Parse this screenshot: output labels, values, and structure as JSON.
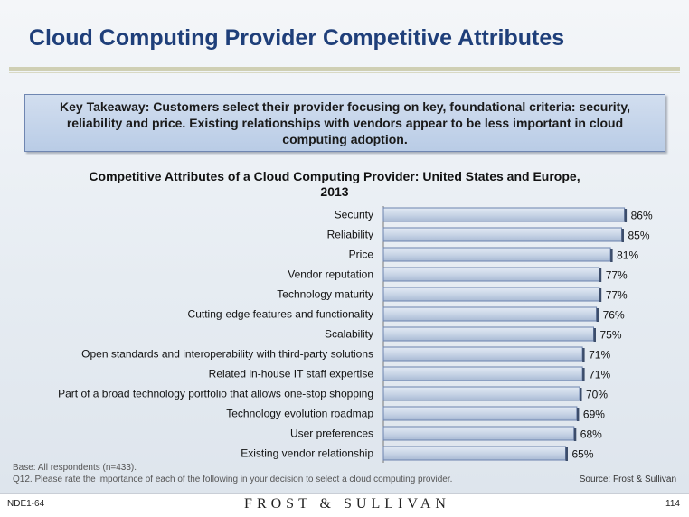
{
  "header": {
    "title": "Cloud Computing Provider Competitive Attributes"
  },
  "takeaway": {
    "text": "Key Takeaway: Customers select their provider focusing on key, foundational criteria: security, reliability and price. Existing relationships with vendors appear to be less important in cloud computing adoption."
  },
  "chart_data": {
    "type": "bar",
    "orientation": "horizontal",
    "title": "Competitive Attributes of a Cloud Computing Provider: United States and Europe, 2013",
    "categories": [
      "Security",
      "Reliability",
      "Price",
      "Vendor reputation",
      "Technology maturity",
      "Cutting-edge features and functionality",
      "Scalability",
      "Open standards and interoperability with third-party solutions",
      "Related in-house IT staff expertise",
      "Part of a broad technology portfolio that allows one-stop shopping",
      "Technology evolution roadmap",
      "User preferences",
      "Existing vendor relationship"
    ],
    "values": [
      86,
      85,
      81,
      77,
      77,
      76,
      75,
      71,
      71,
      70,
      69,
      68,
      65
    ],
    "value_labels": [
      "86%",
      "85%",
      "81%",
      "77%",
      "77%",
      "76%",
      "75%",
      "71%",
      "71%",
      "70%",
      "69%",
      "68%",
      "65%"
    ],
    "xlim": [
      0,
      100
    ],
    "grid": false,
    "legend": "none",
    "bar_color": "#c6d3e5",
    "bar_edge_color": "#6c83ae"
  },
  "footnotes": {
    "base": "Base: All respondents (n=433).",
    "question": "Q12. Please rate the importance of each of the following in your decision to select a cloud computing provider.",
    "source": "Source: Frost & Sullivan"
  },
  "footer": {
    "slide_id": "NDE1-64",
    "brand": "FROST & SULLIVAN",
    "page": "114"
  },
  "colors": {
    "title": "#1f3f7a",
    "takeaway_bg": "#c4d3ea",
    "takeaway_border": "#6f86b1",
    "rule": "#cfcfb4"
  }
}
